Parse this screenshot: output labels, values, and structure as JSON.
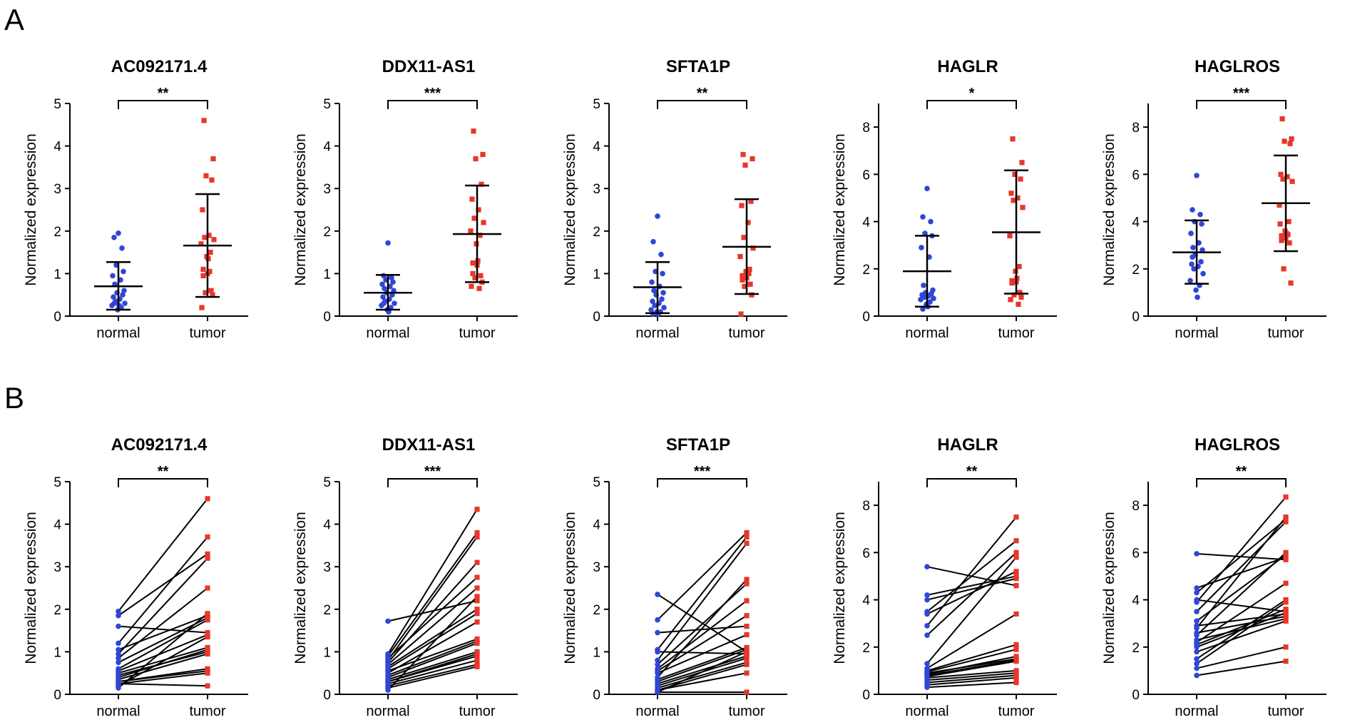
{
  "figure": {
    "panel_labels": [
      "A",
      "B"
    ],
    "colors": {
      "normal": "#2f46d6",
      "tumor": "#e8372a",
      "line": "#000000"
    }
  },
  "chart_data": [
    {
      "panel": "A",
      "type": "scatter",
      "title": "AC092171.4",
      "ylabel": "Normalized expression",
      "categories": [
        "normal",
        "tumor"
      ],
      "ylim": [
        0,
        5
      ],
      "yticks": [
        0,
        1,
        2,
        3,
        4,
        5
      ],
      "significance": "**",
      "normal": [
        1.95,
        1.85,
        1.6,
        1.2,
        1.05,
        0.95,
        0.85,
        0.75,
        0.6,
        0.55,
        0.5,
        0.45,
        0.4,
        0.35,
        0.3,
        0.25,
        0.2,
        0.15,
        0.25,
        0.3
      ],
      "tumor": [
        4.6,
        3.7,
        3.3,
        3.2,
        2.5,
        1.9,
        1.85,
        1.8,
        1.7,
        1.5,
        1.4,
        1.35,
        1.1,
        1.0,
        0.95,
        0.6,
        0.55,
        0.5,
        0.2,
        1.05
      ],
      "normal_mean": 0.7,
      "normal_sd": [
        0.15,
        1.27
      ],
      "tumor_mean": 1.66,
      "tumor_sd": [
        0.45,
        2.87
      ]
    },
    {
      "panel": "A",
      "type": "scatter",
      "title": "DDX11-AS1",
      "ylabel": "Normalized expression",
      "categories": [
        "normal",
        "tumor"
      ],
      "ylim": [
        0,
        5
      ],
      "yticks": [
        0,
        1,
        2,
        3,
        4,
        5
      ],
      "significance": "***",
      "normal": [
        1.72,
        0.95,
        0.9,
        0.85,
        0.8,
        0.75,
        0.7,
        0.65,
        0.6,
        0.55,
        0.5,
        0.45,
        0.4,
        0.35,
        0.3,
        0.25,
        0.2,
        0.15,
        0.1,
        0.3
      ],
      "tumor": [
        4.35,
        3.8,
        3.7,
        3.1,
        2.75,
        2.5,
        2.3,
        2.2,
        2.0,
        1.9,
        1.7,
        1.3,
        1.25,
        1.2,
        1.0,
        0.95,
        0.9,
        0.8,
        0.7,
        0.65
      ],
      "normal_mean": 0.55,
      "normal_sd": [
        0.15,
        0.97
      ],
      "tumor_mean": 1.93,
      "tumor_sd": [
        0.8,
        3.07
      ]
    },
    {
      "panel": "A",
      "type": "scatter",
      "title": "SFTA1P",
      "ylabel": "Normalized expression",
      "categories": [
        "normal",
        "tumor"
      ],
      "ylim": [
        0,
        5
      ],
      "yticks": [
        0,
        1,
        2,
        3,
        4,
        5
      ],
      "significance": "**",
      "normal": [
        2.35,
        1.75,
        1.45,
        1.05,
        1.0,
        0.8,
        0.7,
        0.6,
        0.55,
        0.5,
        0.4,
        0.35,
        0.3,
        0.25,
        0.2,
        0.15,
        0.1,
        0.1,
        0.05,
        0.05
      ],
      "tumor": [
        3.8,
        3.7,
        3.55,
        2.7,
        2.6,
        2.2,
        1.85,
        1.6,
        1.4,
        1.1,
        1.05,
        1.0,
        0.95,
        0.9,
        0.85,
        0.75,
        0.7,
        0.5,
        0.05,
        1.0
      ],
      "normal_mean": 0.68,
      "normal_sd": [
        0.07,
        1.27
      ],
      "tumor_mean": 1.63,
      "tumor_sd": [
        0.52,
        2.75
      ]
    },
    {
      "panel": "A",
      "type": "scatter",
      "title": "HAGLR",
      "ylabel": "Normalized expression",
      "categories": [
        "normal",
        "tumor"
      ],
      "ylim": [
        0,
        9
      ],
      "yticks": [
        0,
        2,
        4,
        6,
        8
      ],
      "significance": "*",
      "normal": [
        5.4,
        4.2,
        4.0,
        3.5,
        3.4,
        2.9,
        2.5,
        1.3,
        1.1,
        1.0,
        0.95,
        0.9,
        0.85,
        0.8,
        0.75,
        0.7,
        0.6,
        0.5,
        0.4,
        0.3
      ],
      "tumor": [
        7.5,
        6.5,
        6.0,
        5.8,
        5.2,
        5.0,
        4.9,
        4.6,
        3.4,
        2.1,
        1.9,
        1.6,
        1.5,
        1.45,
        1.4,
        1.0,
        0.9,
        0.8,
        0.7,
        0.5
      ],
      "normal_mean": 1.9,
      "normal_sd": [
        0.4,
        3.4
      ],
      "tumor_mean": 3.55,
      "tumor_sd": [
        0.95,
        6.17
      ]
    },
    {
      "panel": "A",
      "type": "scatter",
      "title": "HAGLROS",
      "ylabel": "Normalized expression",
      "categories": [
        "normal",
        "tumor"
      ],
      "ylim": [
        0,
        9
      ],
      "yticks": [
        0,
        2,
        4,
        6,
        8
      ],
      "significance": "***",
      "normal": [
        5.95,
        4.5,
        4.3,
        4.0,
        3.9,
        3.5,
        3.1,
        2.9,
        2.8,
        2.6,
        2.3,
        2.2,
        2.1,
        2.0,
        1.8,
        1.5,
        1.3,
        1.1,
        0.8,
        2.5
      ],
      "tumor": [
        8.35,
        7.5,
        7.4,
        7.3,
        6.0,
        5.9,
        5.8,
        5.7,
        4.7,
        4.0,
        3.6,
        3.5,
        3.4,
        3.3,
        3.2,
        3.1,
        2.0,
        1.4,
        3.9,
        3.45
      ],
      "normal_mean": 2.7,
      "normal_sd": [
        1.37,
        4.05
      ],
      "tumor_mean": 4.78,
      "tumor_sd": [
        2.75,
        6.8
      ]
    },
    {
      "panel": "B",
      "type": "line",
      "title": "AC092171.4",
      "ylabel": "Normalized expression",
      "categories": [
        "normal",
        "tumor"
      ],
      "ylim": [
        0,
        5
      ],
      "yticks": [
        0,
        1,
        2,
        3,
        4,
        5
      ],
      "significance": "**",
      "pairs": [
        [
          1.95,
          4.6
        ],
        [
          1.85,
          3.3
        ],
        [
          1.6,
          1.45
        ],
        [
          1.2,
          3.7
        ],
        [
          1.05,
          1.85
        ],
        [
          0.95,
          3.2
        ],
        [
          0.85,
          2.5
        ],
        [
          0.75,
          1.8
        ],
        [
          0.6,
          1.75
        ],
        [
          0.55,
          1.4
        ],
        [
          0.5,
          1.1
        ],
        [
          0.45,
          1.0
        ],
        [
          0.4,
          1.05
        ],
        [
          0.35,
          0.95
        ],
        [
          0.3,
          0.6
        ],
        [
          0.3,
          0.55
        ],
        [
          0.25,
          0.5
        ],
        [
          0.25,
          0.2
        ],
        [
          0.2,
          1.35
        ],
        [
          0.15,
          1.9
        ]
      ]
    },
    {
      "panel": "B",
      "type": "line",
      "title": "DDX11-AS1",
      "ylabel": "Normalized expression",
      "categories": [
        "normal",
        "tumor"
      ],
      "ylim": [
        0,
        5
      ],
      "yticks": [
        0,
        1,
        2,
        3,
        4,
        5
      ],
      "significance": "***",
      "pairs": [
        [
          1.72,
          2.2
        ],
        [
          0.95,
          4.35
        ],
        [
          0.9,
          3.8
        ],
        [
          0.85,
          2.75
        ],
        [
          0.8,
          3.7
        ],
        [
          0.75,
          3.1
        ],
        [
          0.7,
          2.5
        ],
        [
          0.65,
          2.0
        ],
        [
          0.6,
          1.9
        ],
        [
          0.55,
          1.3
        ],
        [
          0.5,
          1.7
        ],
        [
          0.45,
          1.25
        ],
        [
          0.4,
          1.2
        ],
        [
          0.35,
          1.0
        ],
        [
          0.3,
          0.95
        ],
        [
          0.3,
          0.9
        ],
        [
          0.25,
          0.8
        ],
        [
          0.2,
          0.7
        ],
        [
          0.15,
          0.65
        ],
        [
          0.1,
          2.3
        ]
      ]
    },
    {
      "panel": "B",
      "type": "line",
      "title": "SFTA1P",
      "ylabel": "Normalized expression",
      "categories": [
        "normal",
        "tumor"
      ],
      "ylim": [
        0,
        5
      ],
      "yticks": [
        0,
        1,
        2,
        3,
        4,
        5
      ],
      "significance": "***",
      "pairs": [
        [
          2.35,
          1.0
        ],
        [
          1.75,
          3.8
        ],
        [
          1.45,
          1.6
        ],
        [
          1.05,
          3.7
        ],
        [
          1.0,
          0.95
        ],
        [
          0.8,
          3.55
        ],
        [
          0.7,
          2.6
        ],
        [
          0.6,
          2.2
        ],
        [
          0.55,
          1.85
        ],
        [
          0.5,
          1.4
        ],
        [
          0.4,
          2.7
        ],
        [
          0.35,
          1.1
        ],
        [
          0.3,
          1.05
        ],
        [
          0.25,
          0.9
        ],
        [
          0.2,
          0.85
        ],
        [
          0.15,
          0.75
        ],
        [
          0.1,
          0.7
        ],
        [
          0.1,
          0.5
        ],
        [
          0.05,
          0.05
        ],
        [
          0.05,
          1.0
        ]
      ]
    },
    {
      "panel": "B",
      "type": "line",
      "title": "HAGLR",
      "ylabel": "Normalized expression",
      "categories": [
        "normal",
        "tumor"
      ],
      "ylim": [
        0,
        9
      ],
      "yticks": [
        0,
        2,
        4,
        6,
        8
      ],
      "significance": "**",
      "pairs": [
        [
          5.4,
          4.6
        ],
        [
          4.2,
          5.0
        ],
        [
          4.0,
          4.9
        ],
        [
          3.5,
          6.5
        ],
        [
          3.4,
          5.2
        ],
        [
          2.9,
          7.5
        ],
        [
          2.5,
          6.0
        ],
        [
          1.3,
          5.8
        ],
        [
          1.1,
          3.4
        ],
        [
          1.0,
          2.1
        ],
        [
          0.95,
          1.9
        ],
        [
          0.9,
          1.5
        ],
        [
          0.85,
          1.6
        ],
        [
          0.8,
          1.45
        ],
        [
          0.75,
          1.4
        ],
        [
          0.7,
          1.0
        ],
        [
          0.6,
          0.9
        ],
        [
          0.5,
          0.8
        ],
        [
          0.4,
          0.7
        ],
        [
          0.3,
          0.5
        ]
      ]
    },
    {
      "panel": "B",
      "type": "line",
      "title": "HAGLROS",
      "ylabel": "Normalized expression",
      "categories": [
        "normal",
        "tumor"
      ],
      "ylim": [
        0,
        9
      ],
      "yticks": [
        0,
        2,
        4,
        6,
        8
      ],
      "significance": "**",
      "pairs": [
        [
          5.95,
          5.7
        ],
        [
          4.5,
          5.8
        ],
        [
          4.3,
          7.4
        ],
        [
          4.0,
          3.5
        ],
        [
          3.9,
          8.35
        ],
        [
          3.5,
          7.3
        ],
        [
          3.1,
          5.9
        ],
        [
          2.9,
          3.4
        ],
        [
          2.8,
          7.5
        ],
        [
          2.6,
          3.3
        ],
        [
          2.5,
          6.0
        ],
        [
          2.3,
          3.2
        ],
        [
          2.2,
          4.7
        ],
        [
          2.1,
          3.6
        ],
        [
          2.0,
          3.45
        ],
        [
          1.8,
          3.1
        ],
        [
          1.5,
          4.0
        ],
        [
          1.3,
          3.9
        ],
        [
          1.1,
          2.0
        ],
        [
          0.8,
          1.4
        ]
      ]
    }
  ]
}
